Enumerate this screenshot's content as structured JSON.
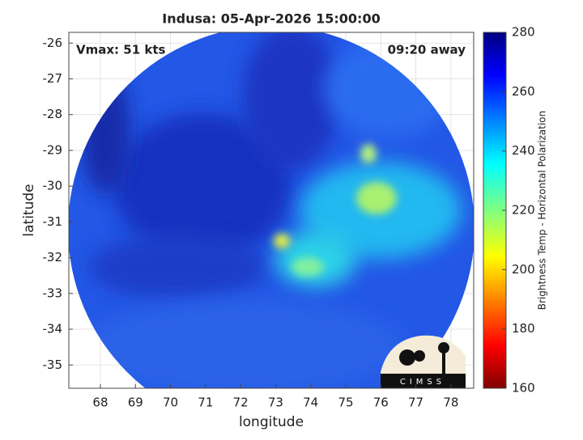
{
  "chart_data": {
    "type": "image",
    "title": "Indusa: 05-Apr-2026 15:00:00",
    "annotations": [
      "Vmax: 51 kts",
      "09:20 away"
    ],
    "xlabel": "longitude",
    "ylabel": "latitude",
    "xlim": [
      67.1,
      78.65
    ],
    "xticks": [
      68,
      69,
      70,
      71,
      72,
      73,
      74,
      75,
      76,
      77,
      78
    ],
    "ylim": [
      -35.65,
      -25.7
    ],
    "yticks": [
      -35,
      -34,
      -33,
      -32,
      -31,
      -30,
      -29,
      -28,
      -27,
      -26
    ],
    "grid": true,
    "colorbar": {
      "label": "Brightness Temp - Horizontal Polarization",
      "lim": [
        160,
        280
      ],
      "ticks": [
        160,
        180,
        200,
        220,
        240,
        260,
        280
      ]
    },
    "logo": "CIMSS"
  }
}
